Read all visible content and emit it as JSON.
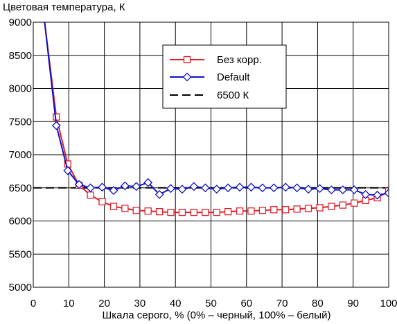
{
  "chart_data": {
    "type": "line",
    "title": "Цветовая температура, К",
    "xlabel": "Шкала серого, % (0% – черный, 100% – белый)",
    "ylabel": "",
    "xlim": [
      0,
      100
    ],
    "ylim": [
      5000,
      9000
    ],
    "x_ticks": [
      "0",
      "10",
      "20",
      "30",
      "40",
      "50",
      "60",
      "70",
      "80",
      "90",
      "100"
    ],
    "y_ticks": [
      "5000",
      "5500",
      "6000",
      "6500",
      "7000",
      "7500",
      "8000",
      "8500",
      "9000"
    ],
    "grid": true,
    "legend_position": "top-right",
    "x": [
      3.2,
      6.5,
      9.7,
      12.9,
      16.1,
      19.4,
      22.6,
      25.8,
      29.0,
      32.3,
      35.5,
      38.7,
      41.9,
      45.2,
      48.4,
      51.6,
      54.8,
      58.1,
      61.3,
      64.5,
      67.7,
      71.0,
      74.2,
      77.4,
      80.6,
      83.9,
      87.1,
      90.3,
      93.5,
      96.8,
      100.0
    ],
    "series": [
      {
        "name": "Без корр.",
        "color": "#e0202a",
        "marker": "square",
        "values": [
          9000,
          7570,
          6860,
          6540,
          6390,
          6290,
          6220,
          6190,
          6160,
          6150,
          6140,
          6130,
          6130,
          6130,
          6130,
          6130,
          6140,
          6150,
          6150,
          6160,
          6170,
          6170,
          6180,
          6190,
          6200,
          6220,
          6240,
          6270,
          6310,
          6350,
          6450
        ]
      },
      {
        "name": "Default",
        "color": "#1010c8",
        "marker": "diamond",
        "values": [
          9000,
          7440,
          6760,
          6550,
          6500,
          6510,
          6460,
          6530,
          6520,
          6580,
          6400,
          6490,
          6480,
          6520,
          6500,
          6480,
          6500,
          6510,
          6510,
          6500,
          6500,
          6510,
          6500,
          6480,
          6490,
          6470,
          6470,
          6470,
          6400,
          6390,
          6420
        ]
      },
      {
        "name": "6500 К",
        "color": "#000000",
        "style": "dashed",
        "constant": 6500
      }
    ]
  }
}
